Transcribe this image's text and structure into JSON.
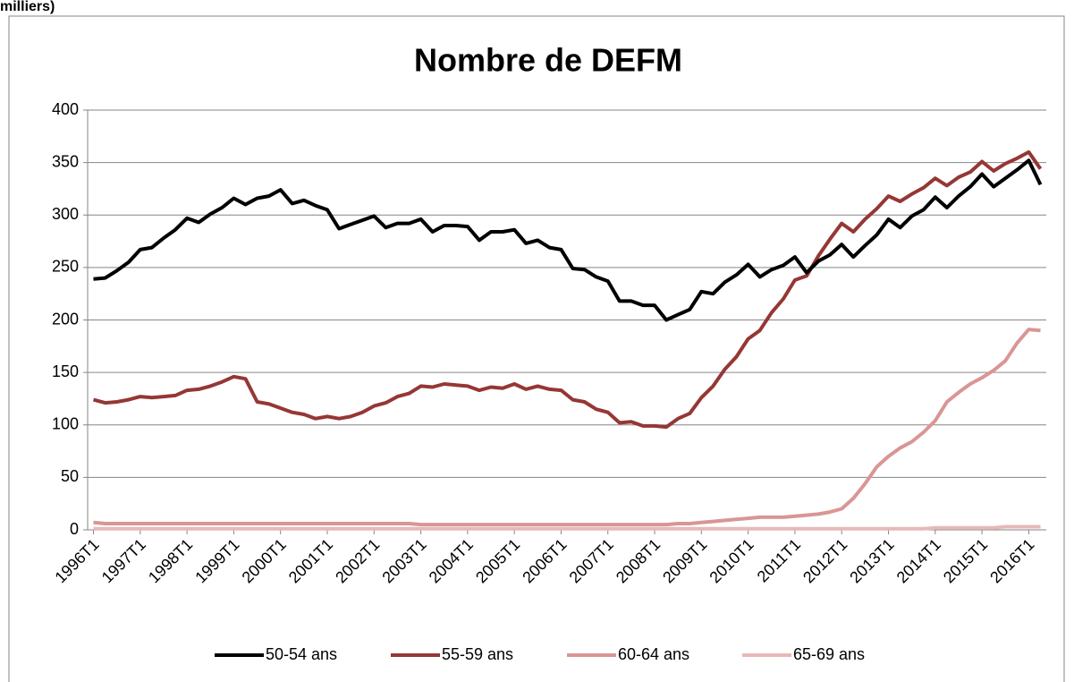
{
  "chart_data": {
    "type": "line",
    "unit_note": "milliers)",
    "title": "Nombre de DEFM",
    "categories": [
      "1996T1",
      null,
      null,
      null,
      "1997T1",
      null,
      null,
      null,
      "1998T1",
      null,
      null,
      null,
      "1999T1",
      null,
      null,
      null,
      "2000T1",
      null,
      null,
      null,
      "2001T1",
      null,
      null,
      null,
      "2002T1",
      null,
      null,
      null,
      "2003T1",
      null,
      null,
      null,
      "2004T1",
      null,
      null,
      null,
      "2005T1",
      null,
      null,
      null,
      "2006T1",
      null,
      null,
      null,
      "2007T1",
      null,
      null,
      null,
      "2008T1",
      null,
      null,
      null,
      "2009T1",
      null,
      null,
      null,
      "2010T1",
      null,
      null,
      null,
      "2011T1",
      null,
      null,
      null,
      "2012T1",
      null,
      null,
      null,
      "2013T1",
      null,
      null,
      null,
      "2014T1",
      null,
      null,
      null,
      "2015T1",
      null,
      null,
      null,
      "2016T1",
      null
    ],
    "series": [
      {
        "name": "50-54 ans",
        "color": "#000000",
        "values": [
          239,
          240,
          247,
          255,
          267,
          269,
          278,
          286,
          297,
          293,
          301,
          307,
          316,
          310,
          316,
          318,
          324,
          311,
          314,
          309,
          305,
          287,
          291,
          295,
          299,
          288,
          292,
          292,
          296,
          284,
          290,
          290,
          289,
          276,
          284,
          284,
          286,
          273,
          276,
          269,
          267,
          249,
          248,
          241,
          237,
          218,
          218,
          214,
          214,
          200,
          205,
          210,
          227,
          225,
          236,
          243,
          253,
          241,
          248,
          252,
          260,
          245,
          256,
          262,
          272,
          260,
          271,
          281,
          296,
          288,
          299,
          305,
          317,
          307,
          318,
          327,
          339,
          327,
          335,
          343,
          352,
          329
        ]
      },
      {
        "name": "55-59 ans",
        "color": "#953735",
        "values": [
          124,
          121,
          122,
          124,
          127,
          126,
          127,
          128,
          133,
          134,
          137,
          141,
          146,
          144,
          122,
          120,
          116,
          112,
          110,
          106,
          108,
          106,
          108,
          112,
          118,
          121,
          127,
          130,
          137,
          136,
          139,
          138,
          137,
          133,
          136,
          135,
          139,
          134,
          137,
          134,
          133,
          124,
          122,
          115,
          112,
          102,
          103,
          99,
          99,
          98,
          106,
          111,
          126,
          137,
          153,
          165,
          182,
          190,
          207,
          220,
          238,
          242,
          261,
          277,
          292,
          284,
          296,
          306,
          318,
          313,
          320,
          326,
          335,
          328,
          336,
          341,
          351,
          342,
          349,
          354,
          360,
          344
        ]
      },
      {
        "name": "60-64 ans",
        "color": "#d99694",
        "values": [
          7,
          6,
          6,
          6,
          6,
          6,
          6,
          6,
          6,
          6,
          6,
          6,
          6,
          6,
          6,
          6,
          6,
          6,
          6,
          6,
          6,
          6,
          6,
          6,
          6,
          6,
          6,
          6,
          5,
          5,
          5,
          5,
          5,
          5,
          5,
          5,
          5,
          5,
          5,
          5,
          5,
          5,
          5,
          5,
          5,
          5,
          5,
          5,
          5,
          5,
          6,
          6,
          7,
          8,
          9,
          10,
          11,
          12,
          12,
          12,
          13,
          14,
          15,
          17,
          20,
          30,
          44,
          60,
          70,
          78,
          84,
          93,
          104,
          122,
          131,
          139,
          145,
          152,
          161,
          178,
          191,
          190
        ]
      },
      {
        "name": "65-69 ans",
        "color": "#e6b9b8",
        "values": [
          1,
          1,
          1,
          1,
          1,
          1,
          1,
          1,
          1,
          1,
          1,
          1,
          1,
          1,
          1,
          1,
          1,
          1,
          1,
          1,
          1,
          1,
          1,
          1,
          1,
          1,
          1,
          1,
          1,
          1,
          1,
          1,
          1,
          1,
          1,
          1,
          1,
          1,
          1,
          1,
          1,
          1,
          1,
          1,
          1,
          1,
          1,
          1,
          1,
          1,
          1,
          1,
          1,
          1,
          1,
          1,
          1,
          1,
          1,
          1,
          1,
          1,
          1,
          1,
          1,
          1,
          1,
          1,
          1,
          1,
          1,
          1,
          2,
          2,
          2,
          2,
          2,
          2,
          3,
          3,
          3,
          3
        ]
      }
    ],
    "ylim": [
      0,
      400
    ],
    "yticks": [
      0,
      50,
      100,
      150,
      200,
      250,
      300,
      350,
      400
    ],
    "grid": true,
    "legend": "bottom"
  }
}
